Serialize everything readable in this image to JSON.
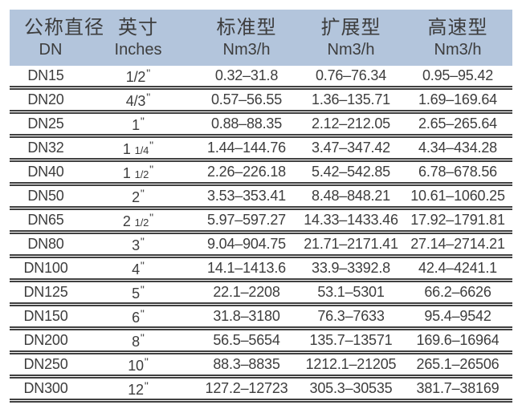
{
  "colors": {
    "page_bg": "#ffffff",
    "header_bg": "#b3c5dc",
    "text": "#3d3d3d",
    "rule": "#404040"
  },
  "table": {
    "inch_unit": "\"",
    "header": {
      "columns": [
        {
          "zh": "公称直径",
          "sub": "DN"
        },
        {
          "zh": "英寸",
          "sub": "Inches"
        },
        {
          "zh": "标准型",
          "sub": "Nm3/h"
        },
        {
          "zh": "扩展型",
          "sub": "Nm3/h"
        },
        {
          "zh": "高速型",
          "sub": "Nm3/h"
        }
      ]
    },
    "rows": [
      {
        "dn": "DN15",
        "inch_whole": "1/2",
        "inch_frac": "",
        "std": "0.32–31.8",
        "ext": "0.76–76.34",
        "high": "0.95–95.42"
      },
      {
        "dn": "DN20",
        "inch_whole": "4/3",
        "inch_frac": "",
        "std": "0.57–56.55",
        "ext": "1.36–135.71",
        "high": "1.69–169.64"
      },
      {
        "dn": "DN25",
        "inch_whole": "1",
        "inch_frac": "",
        "std": "0.88–88.35",
        "ext": "2.12–212.05",
        "high": "2.65–265.64"
      },
      {
        "dn": "DN32",
        "inch_whole": "1",
        "inch_frac": "1/4",
        "std": "1.44–144.76",
        "ext": "3.47–347.42",
        "high": "4.34–434.28"
      },
      {
        "dn": "DN40",
        "inch_whole": "1",
        "inch_frac": "1/2",
        "std": "2.26–226.18",
        "ext": "5.42–542.85",
        "high": "6.78–678.56"
      },
      {
        "dn": "DN50",
        "inch_whole": "2",
        "inch_frac": "",
        "std": "3.53–353.41",
        "ext": "8.48–848.21",
        "high": "10.61–1060.25"
      },
      {
        "dn": "DN65",
        "inch_whole": "2",
        "inch_frac": "1/2",
        "std": "5.97–597.27",
        "ext": "14.33–1433.46",
        "high": "17.92–1791.81"
      },
      {
        "dn": "DN80",
        "inch_whole": "3",
        "inch_frac": "",
        "std": "9.04–904.75",
        "ext": "21.71–2171.41",
        "high": "27.14–2714.21"
      },
      {
        "dn": "DN100",
        "inch_whole": "4",
        "inch_frac": "",
        "std": "14.1–1413.6",
        "ext": "33.9–3392.8",
        "high": "42.4–4241.1"
      },
      {
        "dn": "DN125",
        "inch_whole": "5",
        "inch_frac": "",
        "std": "22.1–2208",
        "ext": "53.1–5301",
        "high": "66.2–6626"
      },
      {
        "dn": "DN150",
        "inch_whole": "6",
        "inch_frac": "",
        "std": "31.8–3180",
        "ext": "76.3–7633",
        "high": "95.4–9542"
      },
      {
        "dn": "DN200",
        "inch_whole": "8",
        "inch_frac": "",
        "std": "56.5–5654",
        "ext": "135.7–13571",
        "high": "169.6–16964"
      },
      {
        "dn": "DN250",
        "inch_whole": "10",
        "inch_frac": "",
        "std": "88.3–8835",
        "ext": "1212.1–21205",
        "high": "265.1–26506"
      },
      {
        "dn": "DN300",
        "inch_whole": "12",
        "inch_frac": "",
        "std": "127.2–12723",
        "ext": "305.3–30535",
        "high": "381.7–38169"
      }
    ]
  }
}
